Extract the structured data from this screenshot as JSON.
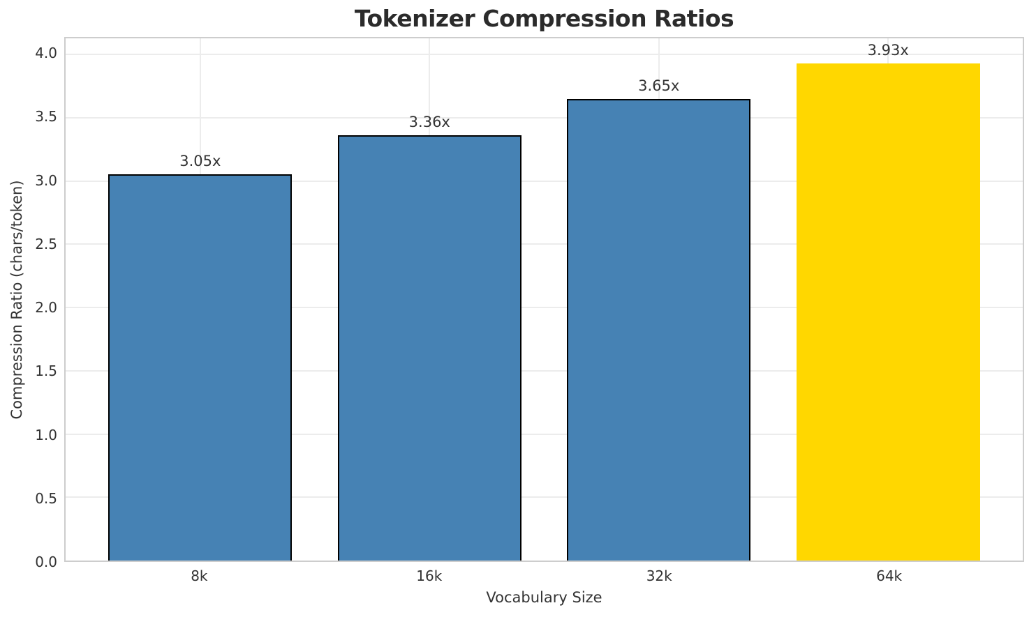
{
  "chart_data": {
    "type": "bar",
    "title": "Tokenizer Compression Ratios",
    "xlabel": "Vocabulary Size",
    "ylabel": "Compression Ratio (chars/token)",
    "categories": [
      "8k",
      "16k",
      "32k",
      "64k"
    ],
    "values": [
      3.05,
      3.36,
      3.65,
      3.93
    ],
    "value_labels": [
      "3.05x",
      "3.36x",
      "3.65x",
      "3.93x"
    ],
    "bar_colors": [
      "#4682B4",
      "#4682B4",
      "#4682B4",
      "#FFD700"
    ],
    "bar_edge_colors": [
      "#000000",
      "#000000",
      "#000000",
      "none"
    ],
    "highlight_index": 3,
    "bar_width": 0.8,
    "xlim": [
      -0.587,
      3.587
    ],
    "ylim": [
      0,
      4.127
    ],
    "yticks": [
      0.0,
      0.5,
      1.0,
      1.5,
      2.0,
      2.5,
      3.0,
      3.5,
      4.0
    ],
    "ytick_labels": [
      "0.0",
      "0.5",
      "1.0",
      "1.5",
      "2.0",
      "2.5",
      "3.0",
      "3.5",
      "4.0"
    ],
    "grid": true,
    "legend": "none"
  },
  "colors": {
    "bar_blue": "#4682B4",
    "bar_gold": "#FFD700",
    "bar_edge": "#000000",
    "gridline": "#ececec",
    "spine": "#cdcdcd",
    "text": "#333333",
    "title_text": "#2b2b2b",
    "background": "#ffffff"
  }
}
